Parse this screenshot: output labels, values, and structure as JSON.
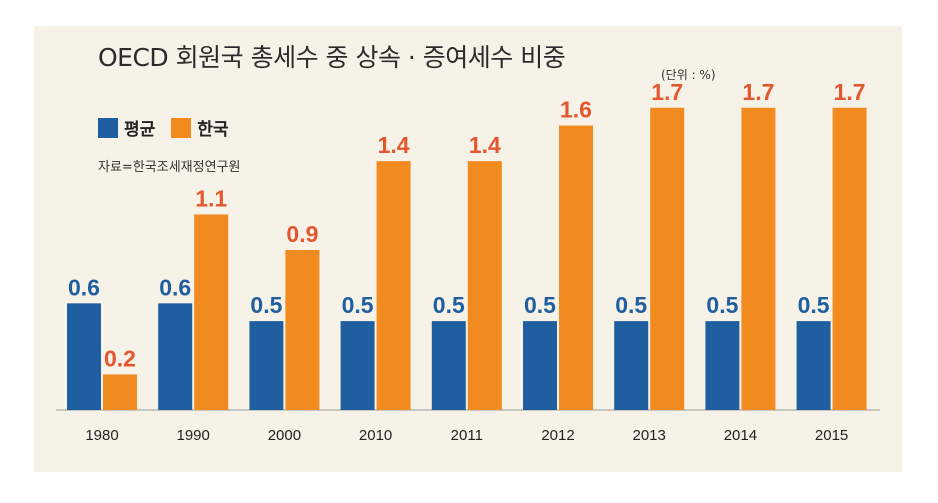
{
  "chart_data": {
    "type": "bar",
    "title": "OECD 회원국 총세수 중 상속 · 증여세수 비중",
    "unit_note": "(단위 : %)",
    "source": "자료=한국조세재정연구원",
    "categories": [
      "1980",
      "1990",
      "2000",
      "2010",
      "2011",
      "2012",
      "2013",
      "2014",
      "2015"
    ],
    "series": [
      {
        "name": "평균",
        "color": "#1f5fa0",
        "label_color": "#1f5fa0",
        "values": [
          0.6,
          0.6,
          0.5,
          0.5,
          0.5,
          0.5,
          0.5,
          0.5,
          0.5
        ]
      },
      {
        "name": "한국",
        "color": "#f18a1f",
        "label_color": "#e4572e",
        "values": [
          0.2,
          1.1,
          0.9,
          1.4,
          1.4,
          1.6,
          1.7,
          1.7,
          1.7
        ]
      }
    ],
    "ylim": [
      0,
      1.8
    ],
    "xlabel": "",
    "ylabel": ""
  }
}
